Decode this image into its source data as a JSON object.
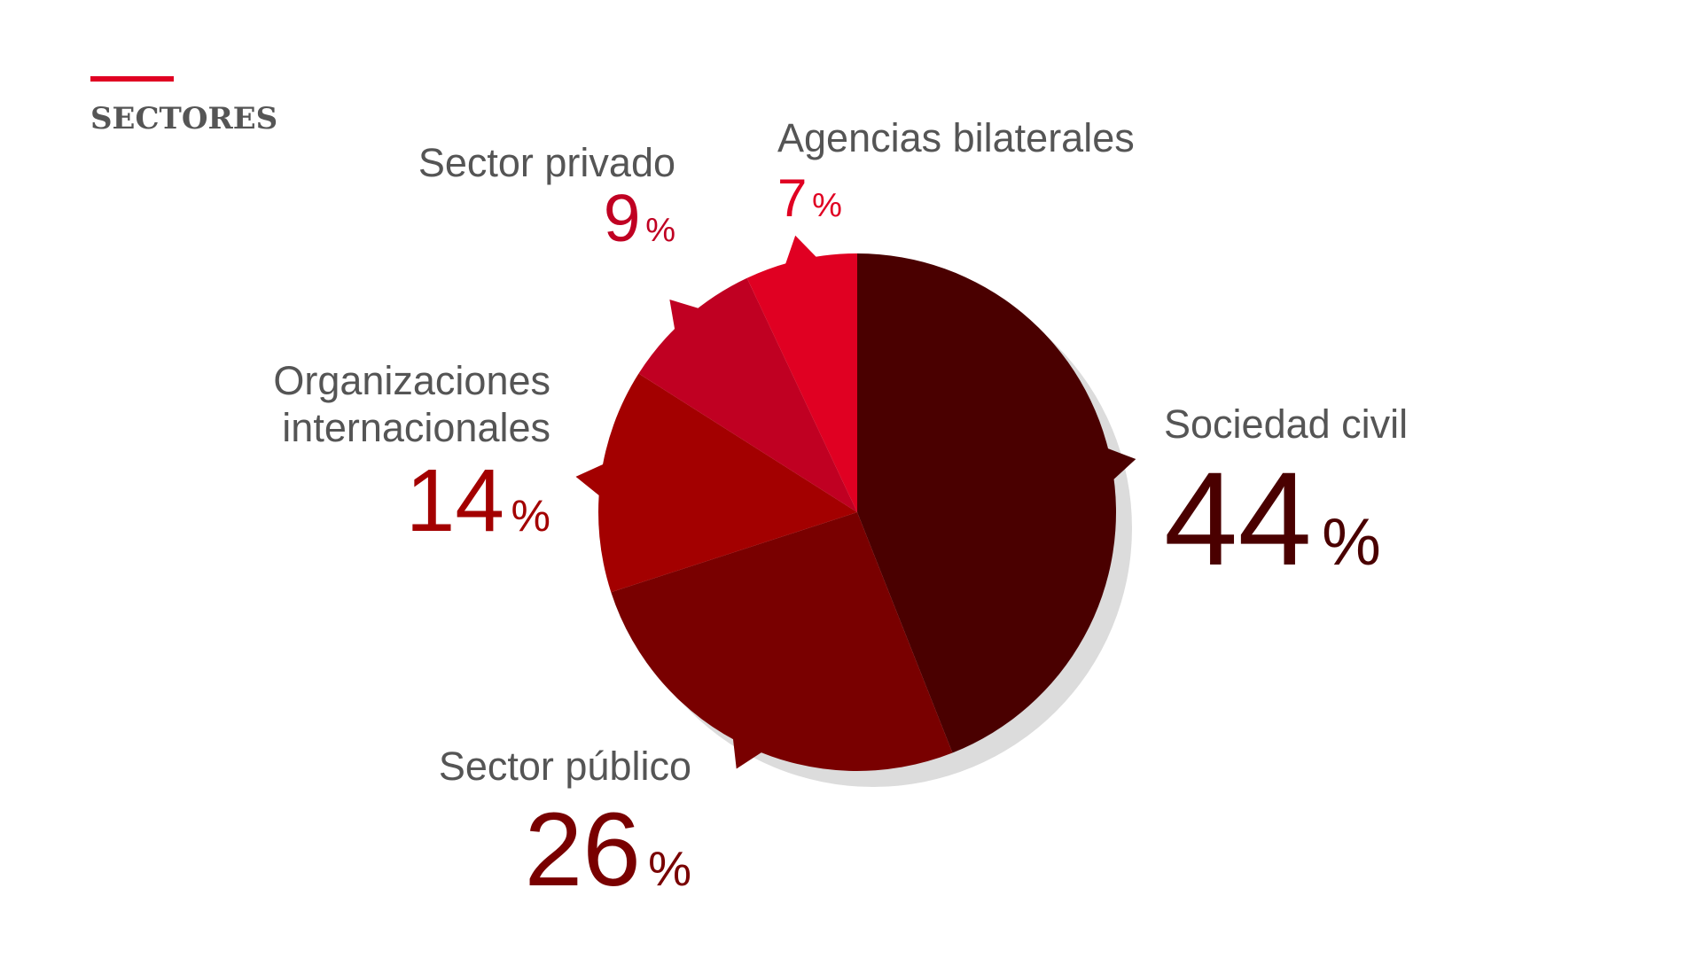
{
  "title": "SECTORES",
  "chart_data": {
    "type": "pie",
    "unit": "%",
    "categories": [
      "Sociedad civil",
      "Sector público",
      "Organizaciones internacionales",
      "Sector privado",
      "Agencias bilaterales"
    ],
    "values": [
      44,
      26,
      14,
      9,
      7
    ],
    "colors": [
      "#4a0000",
      "#790000",
      "#a30000",
      "#c00022",
      "#e00022"
    ]
  }
}
